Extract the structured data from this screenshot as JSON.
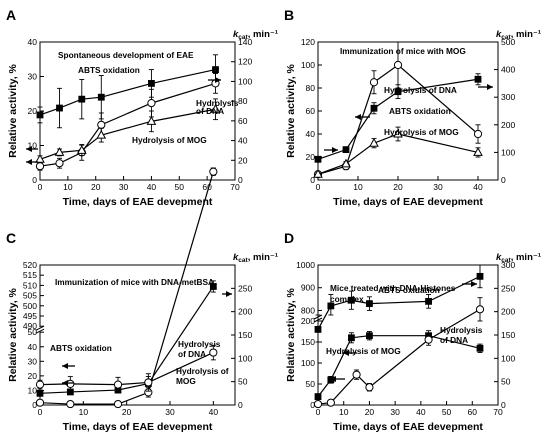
{
  "chart_data": [
    {
      "type": "line",
      "panel_letter": "A",
      "inset_title": "Spontaneous development of EAE",
      "xlabel": "Time, days of EAE devepment",
      "ylabel": "Relative activity, %",
      "y2label_main": "k",
      "y2label_sub": "cat",
      "y2label_tail": ", min⁻¹",
      "xlim": [
        0,
        70
      ],
      "ylim": [
        0,
        40
      ],
      "y2lim": [
        0,
        140
      ],
      "xticks": [
        0,
        10,
        20,
        30,
        40,
        50,
        60,
        70
      ],
      "yticks": [
        0,
        10,
        20,
        30,
        40
      ],
      "y2ticks": [
        0,
        20,
        40,
        60,
        80,
        100,
        120,
        140
      ],
      "series": [
        {
          "name": "ABTS oxidation",
          "marker": "square",
          "axis": "right",
          "x": [
            0,
            7,
            15,
            22,
            40,
            63
          ],
          "y": [
            66,
            73,
            82,
            84,
            98,
            112
          ],
          "err": [
            8,
            20,
            20,
            22,
            14,
            15
          ]
        },
        {
          "name": "Hydrolysis of DNA",
          "marker": "circle",
          "axis": "right",
          "x": [
            0,
            7,
            15,
            22,
            40,
            63
          ],
          "y": [
            14,
            17,
            28,
            56,
            78,
            98
          ],
          "err": [
            4,
            5,
            8,
            12,
            14,
            10
          ]
        },
        {
          "name": "Hydrolysis of MOG",
          "marker": "triangle",
          "axis": "left",
          "x": [
            0,
            7,
            15,
            22,
            40,
            63
          ],
          "y": [
            6,
            8,
            8.6,
            13,
            17,
            20.5
          ],
          "err": [
            1,
            1,
            1.5,
            2,
            3,
            3
          ]
        }
      ],
      "annotations": [
        "ABTS oxidation",
        "Hydrolysis",
        "of DNA",
        "Hydrolysis of MOG"
      ]
    },
    {
      "type": "line",
      "panel_letter": "B",
      "inset_title": "Immunization of mice with MOG",
      "xlabel": "Time, days of EAE devepment",
      "ylabel": "Relative activity, %",
      "y2label_main": "k",
      "y2label_sub": "cat",
      "y2label_tail": ", min⁻¹",
      "xlim": [
        0,
        45
      ],
      "ylim": [
        0,
        120
      ],
      "y2lim": [
        0,
        500
      ],
      "xticks": [
        0,
        10,
        20,
        30,
        40
      ],
      "yticks": [
        0,
        20,
        40,
        60,
        80,
        100,
        120
      ],
      "y2ticks": [
        0,
        100,
        200,
        300,
        400,
        500
      ],
      "series": [
        {
          "name": "Hydrolysis of DNA",
          "marker": "circle",
          "axis": "left",
          "x": [
            0,
            7,
            14,
            20,
            40
          ],
          "y": [
            5,
            12,
            85,
            100,
            40
          ],
          "err": [
            2,
            3,
            10,
            20,
            8
          ]
        },
        {
          "name": "ABTS oxidation",
          "marker": "square",
          "axis": "right",
          "x": [
            0,
            7,
            14,
            20,
            40
          ],
          "y": [
            75,
            110,
            260,
            320,
            365
          ],
          "err": [
            5,
            8,
            20,
            25,
            20
          ]
        },
        {
          "name": "Hydrolysis of MOG",
          "marker": "triangle",
          "axis": "left",
          "x": [
            0,
            7,
            14,
            20,
            40
          ],
          "y": [
            5,
            14,
            32,
            40,
            24
          ],
          "err": [
            1,
            2,
            4,
            6,
            4
          ]
        }
      ],
      "annotations": [
        "Hydrolysis of DNA",
        "ABTS oxidation",
        "Hydrolysis of MOG"
      ]
    },
    {
      "type": "line",
      "panel_letter": "C",
      "inset_title": "Immunization of mice with DNA-metBSA",
      "xlabel": "Time, days of EAE devepment",
      "ylabel": "Relative activity, %",
      "y2label_main": "k",
      "y2label_sub": "cat",
      "y2label_tail": ", min⁻¹",
      "xlim": [
        0,
        45
      ],
      "y2lim": [
        0,
        300
      ],
      "xticks": [
        0,
        10,
        20,
        30,
        40
      ],
      "yticks_lower": [
        0,
        10,
        20,
        30,
        40,
        50
      ],
      "yticks_upper": [
        490,
        495,
        500,
        505,
        510,
        515,
        520
      ],
      "y2ticks": [
        0,
        50,
        100,
        150,
        200,
        250
      ],
      "series": [
        {
          "name": "ABTS oxidation",
          "marker": "square",
          "axis": "right",
          "x": [
            0,
            7,
            18,
            25,
            40
          ],
          "y": [
            25,
            28,
            32,
            46,
            254
          ],
          "err": [
            4,
            5,
            6,
            15,
            12
          ]
        },
        {
          "name": "Hydrolysis of DNA",
          "marker": "circle",
          "axis": "right",
          "x": [
            0,
            7,
            18,
            25,
            40
          ],
          "y": [
            5,
            2,
            2,
            27,
            500
          ],
          "err": [
            3,
            2,
            2,
            10,
            8
          ]
        },
        {
          "name": "Hydrolysis of MOG",
          "marker": "circle",
          "axis": "left",
          "x": [
            0,
            7,
            18,
            25,
            40
          ],
          "y": [
            14,
            14.5,
            14,
            15.5,
            36
          ],
          "err": [
            3,
            5,
            5,
            6,
            5
          ]
        }
      ],
      "annotations": [
        "ABTS oxidation",
        "Hydrolysis",
        "of DNA",
        "Hydrolysis of",
        "MOG"
      ]
    },
    {
      "type": "line",
      "panel_letter": "D",
      "inset_title": [
        "Mice treated with DNA-Histones",
        "complex"
      ],
      "xlabel": "Time, days of EAE devepment",
      "ylabel": "Relative activity, %",
      "y2label_main": "k",
      "y2label_sub": "cat",
      "y2label_tail": ", min⁻¹",
      "xlim": [
        0,
        70
      ],
      "y2lim": [
        0,
        300
      ],
      "xticks": [
        0,
        10,
        20,
        30,
        40,
        50,
        60,
        70
      ],
      "yticks_lower": [
        0,
        50,
        100,
        150,
        200
      ],
      "yticks_upper": [
        800,
        900,
        1000
      ],
      "y2ticks": [
        0,
        50,
        100,
        150,
        200,
        250,
        300
      ],
      "series": [
        {
          "name": "ABTS oxidation",
          "marker": "square",
          "axis": "left",
          "x": [
            0,
            5,
            13,
            20,
            43,
            63
          ],
          "y": [
            180,
            820,
            845,
            830,
            840,
            950
          ],
          "err": [
            30,
            50,
            40,
            30,
            30,
            50
          ]
        },
        {
          "name": "Hydrolysis of MOG",
          "marker": "square",
          "axis": "left",
          "x": [
            0,
            5,
            13,
            20,
            43,
            63
          ],
          "y": [
            20,
            60,
            160,
            165,
            165,
            135
          ],
          "err": [
            5,
            8,
            12,
            10,
            12,
            10
          ]
        },
        {
          "name": "Hydrolysis of DNA",
          "marker": "circle",
          "axis": "right",
          "x": [
            0,
            5,
            15,
            20,
            43,
            63
          ],
          "y": [
            2,
            5,
            65,
            38,
            140,
            205
          ],
          "err": [
            1,
            3,
            10,
            8,
            12,
            25
          ]
        }
      ],
      "annotations": [
        "ABTS oxidation",
        "Hydrolysis of MOG",
        "Hydrolysis",
        "of DNA"
      ]
    }
  ]
}
